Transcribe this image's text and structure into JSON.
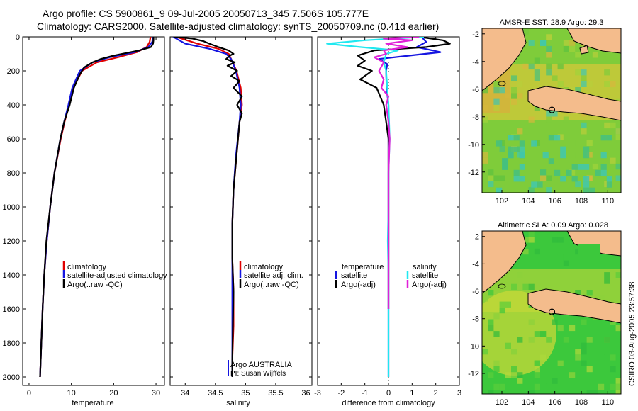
{
  "title_line1": "Argo profile: CS 5900861_9 09-Jul-2005 20050713_345 7.506S 105.777E",
  "title_line2": "Climatology: CARS2000. Satellite-adjusted climatology: synTS_20050709.nc (0.41d earlier)",
  "side_credit": "CSIRO 03-Aug-2005 23:57:38",
  "colors": {
    "red": "#e00000",
    "blue": "#1515e0",
    "black": "#000000",
    "cyan": "#20e8f0",
    "magenta": "#e020d8",
    "land": "#f4bc8c"
  },
  "chart_data": [
    {
      "type": "line",
      "id": "temperature",
      "xlabel": "temperature",
      "xlim": [
        -1.5,
        32
      ],
      "ylim": [
        0,
        2050
      ],
      "xticks": [
        0,
        10,
        20,
        30
      ],
      "yticks": [
        0,
        200,
        400,
        600,
        800,
        1000,
        1200,
        1400,
        1600,
        1800,
        2000
      ],
      "legend": [
        "climatology",
        "satellite-adjusted climatology",
        "Argo(..raw -QC)"
      ],
      "series": [
        {
          "name": "climatology",
          "color": "red",
          "y": [
            0,
            30,
            60,
            90,
            120,
            150,
            200,
            300,
            400,
            500,
            600,
            800,
            1000,
            1200,
            1400,
            1600,
            1800,
            2000
          ],
          "x": [
            28.7,
            28.5,
            27.8,
            25.5,
            21,
            16,
            12.5,
            10.5,
            9.5,
            8.4,
            7.5,
            6.0,
            5.0,
            4.2,
            3.6,
            3.2,
            2.9,
            2.6
          ]
        },
        {
          "name": "satellite",
          "color": "blue",
          "y": [
            0,
            30,
            60,
            90,
            120,
            150,
            200,
            300,
            400,
            500,
            600,
            800,
            1000,
            1200,
            1400,
            1600,
            1800,
            2000
          ],
          "x": [
            29.3,
            29.1,
            28.2,
            25,
            19,
            15,
            12,
            10.2,
            9.3,
            8.3,
            7.4,
            6.0,
            5.0,
            4.2,
            3.6,
            3.2,
            2.9,
            2.6
          ]
        },
        {
          "name": "argo",
          "color": "black",
          "y": [
            0,
            20,
            40,
            60,
            80,
            110,
            130,
            150,
            180,
            220,
            300,
            400,
            500,
            600,
            800,
            1000,
            1200,
            1400,
            1600,
            1800,
            2000
          ],
          "x": [
            29.4,
            29.4,
            29.3,
            28.8,
            26,
            20,
            17,
            15,
            13,
            12,
            10.6,
            9.6,
            8.3,
            7.4,
            6.0,
            5.0,
            4.1,
            3.6,
            3.2,
            2.9,
            2.6
          ]
        }
      ]
    },
    {
      "type": "line",
      "id": "salinity",
      "xlabel": "salinity",
      "xlim": [
        33.75,
        36.1
      ],
      "ylim": [
        0,
        2050
      ],
      "xticks": [
        34,
        34.5,
        35,
        35.5,
        36
      ],
      "legend": [
        "climatology",
        "satellite adj. clim.",
        "Argo(..raw -QC)"
      ],
      "annotation": [
        "Argo AUSTRALIA",
        "PI: Susan Wijffels"
      ],
      "series": [
        {
          "name": "climatology",
          "color": "red",
          "y": [
            0,
            40,
            70,
            100,
            130,
            200,
            300,
            400,
            500,
            700,
            900,
            1100,
            1300,
            1500,
            1700,
            1900
          ],
          "x": [
            33.85,
            34.2,
            34.55,
            34.72,
            34.76,
            34.85,
            34.92,
            34.94,
            34.9,
            34.85,
            34.8,
            34.78,
            34.78,
            34.8,
            34.8,
            34.78
          ]
        },
        {
          "name": "satellite",
          "color": "blue",
          "y": [
            0,
            40,
            70,
            100,
            130,
            200,
            300,
            400,
            500,
            700,
            900,
            1100,
            1300,
            1500,
            1700,
            1900,
            2000
          ],
          "x": [
            33.8,
            34.0,
            34.4,
            34.68,
            34.76,
            34.84,
            34.9,
            34.92,
            34.9,
            34.84,
            34.8,
            34.78,
            34.78,
            34.78,
            34.78,
            34.78,
            34.78
          ]
        },
        {
          "name": "argo",
          "color": "black",
          "y": [
            0,
            10,
            25,
            40,
            60,
            80,
            100,
            110,
            130,
            150,
            170,
            200,
            230,
            260,
            300,
            350,
            400,
            450,
            500,
            700,
            900,
            1100,
            1300,
            1500,
            1700,
            1900,
            2000
          ],
          "x": [
            33.82,
            34.12,
            34.3,
            34.4,
            34.55,
            34.72,
            34.8,
            34.74,
            34.68,
            34.82,
            34.7,
            34.86,
            34.76,
            34.9,
            34.8,
            34.94,
            34.86,
            34.94,
            34.9,
            34.85,
            34.8,
            34.78,
            34.78,
            34.8,
            34.79,
            34.78,
            34.78
          ]
        }
      ]
    },
    {
      "type": "line",
      "id": "difference",
      "xlabel": "difference from climatology",
      "xlim": [
        -3,
        3
      ],
      "ylim": [
        0,
        2050
      ],
      "xticks": [
        -3,
        -2,
        -1,
        0,
        1,
        2,
        3
      ],
      "legend_left": [
        "temperature",
        "satellite",
        "Argo(-adj)"
      ],
      "legend_right": [
        "salinity",
        "satellite",
        "Argo(-adj)"
      ],
      "series": [
        {
          "name": "temp satellite",
          "color": "blue",
          "y": [
            0,
            30,
            60,
            90,
            110,
            130,
            160,
            200,
            300,
            400,
            600,
            800,
            1000,
            1200,
            1400,
            1600,
            1800,
            2000
          ],
          "x": [
            1.4,
            1.6,
            1.2,
            2.2,
            0.9,
            -0.4,
            -0.05,
            -0.1,
            -0.08,
            0,
            0,
            0,
            0,
            0,
            0,
            0,
            0,
            0
          ]
        },
        {
          "name": "temp argo",
          "color": "black",
          "y": [
            0,
            20,
            40,
            60,
            80,
            110,
            140,
            170,
            200,
            250,
            300,
            400,
            500,
            600,
            800,
            1000,
            1200,
            1400,
            1600
          ],
          "x": [
            1.3,
            2.3,
            2.6,
            1.6,
            -0.6,
            -1.3,
            -1.0,
            -1.3,
            -0.7,
            -1.2,
            -0.5,
            -0.2,
            -0.1,
            0,
            0,
            0,
            0,
            0,
            0
          ]
        },
        {
          "name": "sal satellite",
          "color": "cyan",
          "y": [
            0,
            20,
            40,
            60,
            80,
            100,
            150,
            200,
            300,
            400,
            600,
            800,
            1000,
            1200,
            1400,
            1600,
            1800,
            2000
          ],
          "x": [
            1.5,
            -1.0,
            -2.6,
            -1.2,
            0.4,
            -0.1,
            -0.2,
            -0.1,
            -0.05,
            0,
            0.05,
            0,
            0,
            -0.03,
            0,
            0,
            0,
            0
          ]
        },
        {
          "name": "sal argo",
          "color": "magenta",
          "y": [
            0,
            10,
            20,
            40,
            60,
            80,
            100,
            120,
            150,
            200,
            250,
            300,
            350,
            400,
            500,
            600,
            800,
            1000,
            1200,
            1400,
            1600
          ],
          "x": [
            1.3,
            -0.2,
            1.0,
            -0.1,
            0.8,
            -0.2,
            -0.1,
            -0.6,
            -0.2,
            -0.4,
            -0.2,
            -0.3,
            0,
            -0.1,
            0,
            0.05,
            0,
            0,
            0,
            0,
            0
          ]
        }
      ]
    },
    {
      "type": "heatmap",
      "id": "map-sst",
      "title": "AMSR-E SST: 28.9 Argo: 29.3",
      "xlim": [
        100.5,
        111
      ],
      "ylim": [
        -13.5,
        -1.6
      ],
      "xticks": [
        102,
        104,
        106,
        108,
        110
      ],
      "yticks": [
        -2,
        -4,
        -6,
        -8,
        -10,
        -12
      ],
      "marker": {
        "lon": 105.777,
        "lat": -7.506
      }
    },
    {
      "type": "heatmap",
      "id": "map-sla",
      "title": "Altimetric SLA: 0.09 Argo: 0.028",
      "xlim": [
        100.5,
        111
      ],
      "ylim": [
        -13.5,
        -1.6
      ],
      "xticks": [
        102,
        104,
        106,
        108,
        110
      ],
      "yticks": [
        -2,
        -4,
        -6,
        -8,
        -10,
        -12
      ],
      "marker": {
        "lon": 105.777,
        "lat": -7.506
      }
    }
  ]
}
